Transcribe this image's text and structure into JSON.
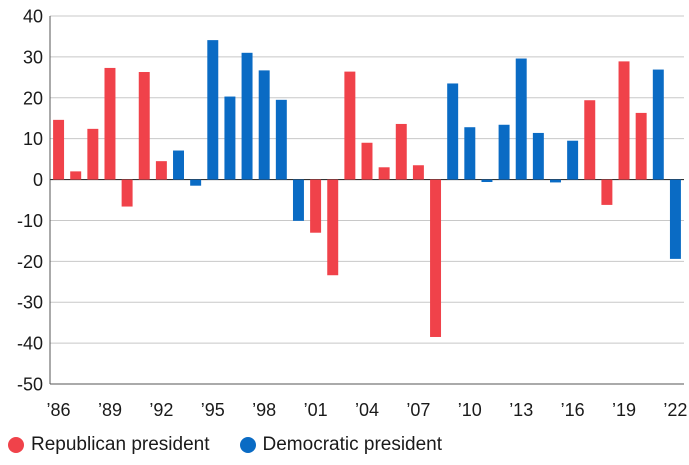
{
  "chart_data": {
    "type": "bar",
    "title": "",
    "xlabel": "",
    "ylabel": "",
    "ylim": [
      -50,
      40
    ],
    "yticks": [
      40,
      30,
      20,
      10,
      0,
      -10,
      -20,
      -30,
      -40,
      -50
    ],
    "grid": true,
    "legend_position": "bottom-left",
    "x_tick_labels": [
      {
        "year": 1986,
        "label": "’86"
      },
      {
        "year": 1989,
        "label": "’89"
      },
      {
        "year": 1992,
        "label": "’92"
      },
      {
        "year": 1995,
        "label": "’95"
      },
      {
        "year": 1998,
        "label": "’98"
      },
      {
        "year": 2001,
        "label": "’01"
      },
      {
        "year": 2004,
        "label": "’04"
      },
      {
        "year": 2007,
        "label": "’07"
      },
      {
        "year": 2010,
        "label": "’10"
      },
      {
        "year": 2013,
        "label": "’13"
      },
      {
        "year": 2016,
        "label": "’16"
      },
      {
        "year": 2019,
        "label": "’19"
      },
      {
        "year": 2022,
        "label": "’22"
      }
    ],
    "series": [
      {
        "name": "Republican president",
        "color": "#f0424a"
      },
      {
        "name": "Democratic president",
        "color": "#0a6bc4"
      }
    ],
    "bars": [
      {
        "year": 1986,
        "value": 14.6,
        "series": 0
      },
      {
        "year": 1987,
        "value": 2.0,
        "series": 0
      },
      {
        "year": 1988,
        "value": 12.4,
        "series": 0
      },
      {
        "year": 1989,
        "value": 27.3,
        "series": 0
      },
      {
        "year": 1990,
        "value": -6.6,
        "series": 0
      },
      {
        "year": 1991,
        "value": 26.3,
        "series": 0
      },
      {
        "year": 1992,
        "value": 4.5,
        "series": 0
      },
      {
        "year": 1993,
        "value": 7.1,
        "series": 1
      },
      {
        "year": 1994,
        "value": -1.5,
        "series": 1
      },
      {
        "year": 1995,
        "value": 34.1,
        "series": 1
      },
      {
        "year": 1996,
        "value": 20.3,
        "series": 1
      },
      {
        "year": 1997,
        "value": 31.0,
        "series": 1
      },
      {
        "year": 1998,
        "value": 26.7,
        "series": 1
      },
      {
        "year": 1999,
        "value": 19.5,
        "series": 1
      },
      {
        "year": 2000,
        "value": -10.1,
        "series": 1
      },
      {
        "year": 2001,
        "value": -13.0,
        "series": 0
      },
      {
        "year": 2002,
        "value": -23.4,
        "series": 0
      },
      {
        "year": 2003,
        "value": 26.4,
        "series": 0
      },
      {
        "year": 2004,
        "value": 9.0,
        "series": 0
      },
      {
        "year": 2005,
        "value": 3.0,
        "series": 0
      },
      {
        "year": 2006,
        "value": 13.6,
        "series": 0
      },
      {
        "year": 2007,
        "value": 3.5,
        "series": 0
      },
      {
        "year": 2008,
        "value": -38.5,
        "series": 0
      },
      {
        "year": 2009,
        "value": 23.5,
        "series": 1
      },
      {
        "year": 2010,
        "value": 12.8,
        "series": 1
      },
      {
        "year": 2011,
        "value": -0.6,
        "series": 1
      },
      {
        "year": 2012,
        "value": 13.4,
        "series": 1
      },
      {
        "year": 2013,
        "value": 29.6,
        "series": 1
      },
      {
        "year": 2014,
        "value": 11.4,
        "series": 1
      },
      {
        "year": 2015,
        "value": -0.7,
        "series": 1
      },
      {
        "year": 2016,
        "value": 9.5,
        "series": 1
      },
      {
        "year": 2017,
        "value": 19.4,
        "series": 0
      },
      {
        "year": 2018,
        "value": -6.2,
        "series": 0
      },
      {
        "year": 2019,
        "value": 28.9,
        "series": 0
      },
      {
        "year": 2020,
        "value": 16.3,
        "series": 0
      },
      {
        "year": 2021,
        "value": 26.9,
        "series": 1
      },
      {
        "year": 2022,
        "value": -19.4,
        "series": 1
      }
    ]
  }
}
